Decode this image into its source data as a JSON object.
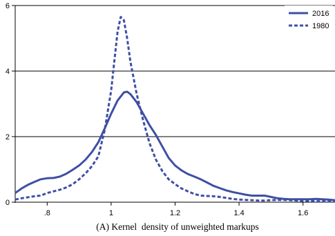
{
  "chart_data": {
    "type": "line",
    "title": "",
    "xlabel": "",
    "ylabel": "",
    "caption": "(A) Kernel  density of unweighted markups",
    "xlim": [
      0.7,
      1.7
    ],
    "ylim": [
      0,
      6
    ],
    "xticks": [
      0.8,
      1.0,
      1.2,
      1.4,
      1.6
    ],
    "xtick_labels": [
      ".8",
      "1",
      "1.2",
      "1.4",
      "1.6"
    ],
    "yticks": [
      0,
      2,
      4,
      6
    ],
    "ytick_labels": [
      "0",
      "2",
      "4",
      "6"
    ],
    "grid": "horizontal",
    "legend_position": "top-right",
    "line_color": "#3e4fa3",
    "series": [
      {
        "name": "2016",
        "style": "solid",
        "points": [
          [
            0.7,
            0.28
          ],
          [
            0.72,
            0.42
          ],
          [
            0.74,
            0.53
          ],
          [
            0.76,
            0.62
          ],
          [
            0.78,
            0.7
          ],
          [
            0.8,
            0.73
          ],
          [
            0.82,
            0.74
          ],
          [
            0.84,
            0.78
          ],
          [
            0.86,
            0.87
          ],
          [
            0.88,
            0.99
          ],
          [
            0.9,
            1.12
          ],
          [
            0.92,
            1.3
          ],
          [
            0.94,
            1.53
          ],
          [
            0.96,
            1.83
          ],
          [
            0.98,
            2.25
          ],
          [
            1.0,
            2.7
          ],
          [
            1.02,
            3.1
          ],
          [
            1.04,
            3.35
          ],
          [
            1.05,
            3.37
          ],
          [
            1.06,
            3.3
          ],
          [
            1.08,
            3.05
          ],
          [
            1.1,
            2.7
          ],
          [
            1.12,
            2.35
          ],
          [
            1.14,
            2.05
          ],
          [
            1.16,
            1.7
          ],
          [
            1.18,
            1.35
          ],
          [
            1.2,
            1.12
          ],
          [
            1.22,
            0.97
          ],
          [
            1.24,
            0.86
          ],
          [
            1.26,
            0.78
          ],
          [
            1.28,
            0.7
          ],
          [
            1.3,
            0.6
          ],
          [
            1.32,
            0.5
          ],
          [
            1.34,
            0.43
          ],
          [
            1.36,
            0.36
          ],
          [
            1.38,
            0.31
          ],
          [
            1.4,
            0.27
          ],
          [
            1.42,
            0.23
          ],
          [
            1.44,
            0.2
          ],
          [
            1.46,
            0.2
          ],
          [
            1.48,
            0.2
          ],
          [
            1.5,
            0.16
          ],
          [
            1.52,
            0.12
          ],
          [
            1.54,
            0.1
          ],
          [
            1.56,
            0.09
          ],
          [
            1.58,
            0.09
          ],
          [
            1.6,
            0.09
          ],
          [
            1.62,
            0.09
          ],
          [
            1.64,
            0.1
          ],
          [
            1.66,
            0.09
          ],
          [
            1.68,
            0.08
          ],
          [
            1.7,
            0.06
          ]
        ]
      },
      {
        "name": "1980",
        "style": "dashed",
        "points": [
          [
            0.7,
            0.08
          ],
          [
            0.72,
            0.12
          ],
          [
            0.74,
            0.15
          ],
          [
            0.76,
            0.18
          ],
          [
            0.78,
            0.2
          ],
          [
            0.8,
            0.28
          ],
          [
            0.82,
            0.33
          ],
          [
            0.84,
            0.38
          ],
          [
            0.86,
            0.45
          ],
          [
            0.88,
            0.55
          ],
          [
            0.9,
            0.7
          ],
          [
            0.92,
            0.88
          ],
          [
            0.94,
            1.1
          ],
          [
            0.96,
            1.4
          ],
          [
            0.98,
            2.2
          ],
          [
            1.0,
            3.4
          ],
          [
            1.01,
            4.3
          ],
          [
            1.02,
            5.2
          ],
          [
            1.03,
            5.65
          ],
          [
            1.04,
            5.55
          ],
          [
            1.05,
            5.0
          ],
          [
            1.06,
            4.3
          ],
          [
            1.08,
            3.3
          ],
          [
            1.1,
            2.5
          ],
          [
            1.12,
            1.8
          ],
          [
            1.14,
            1.3
          ],
          [
            1.16,
            0.95
          ],
          [
            1.18,
            0.7
          ],
          [
            1.2,
            0.55
          ],
          [
            1.22,
            0.42
          ],
          [
            1.24,
            0.33
          ],
          [
            1.26,
            0.25
          ],
          [
            1.28,
            0.2
          ],
          [
            1.3,
            0.19
          ],
          [
            1.32,
            0.18
          ],
          [
            1.34,
            0.16
          ],
          [
            1.36,
            0.13
          ],
          [
            1.38,
            0.1
          ],
          [
            1.4,
            0.08
          ],
          [
            1.42,
            0.07
          ],
          [
            1.44,
            0.06
          ],
          [
            1.46,
            0.05
          ],
          [
            1.48,
            0.05
          ],
          [
            1.5,
            0.06
          ],
          [
            1.52,
            0.07
          ],
          [
            1.54,
            0.07
          ],
          [
            1.56,
            0.06
          ],
          [
            1.58,
            0.05
          ],
          [
            1.6,
            0.04
          ],
          [
            1.62,
            0.04
          ],
          [
            1.64,
            0.03
          ],
          [
            1.66,
            0.03
          ],
          [
            1.68,
            0.02
          ],
          [
            1.7,
            0.02
          ]
        ]
      }
    ]
  }
}
